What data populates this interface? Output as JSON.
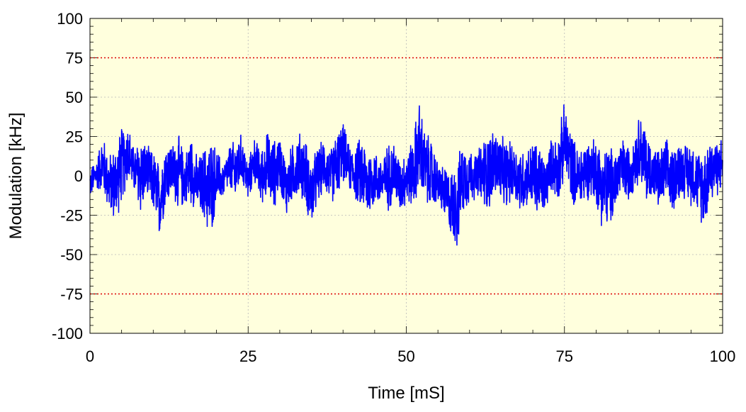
{
  "chart_data": {
    "type": "line",
    "xlabel": "Time [mS]",
    "ylabel": "Modulation [kHz]",
    "xlim": [
      0,
      100
    ],
    "ylim": [
      -100,
      100
    ],
    "x_ticks": [
      0,
      25,
      50,
      75,
      100
    ],
    "x_tick_labels": [
      "0",
      "25",
      "50",
      "75",
      "100"
    ],
    "y_ticks": [
      100,
      75,
      50,
      25,
      0,
      -25,
      -50,
      -75,
      -100
    ],
    "y_tick_labels": [
      "100",
      "75",
      "50",
      "25",
      "0",
      "-25",
      "-50",
      "-75",
      "-100"
    ],
    "grid": true,
    "plot_background": "#ffffdd",
    "series": [
      {
        "color": "#0000ff",
        "envelope_x": [
          0,
          1,
          2,
          3,
          4,
          5,
          6,
          7,
          8,
          9,
          10,
          11,
          12,
          13,
          14,
          15,
          16,
          17,
          18,
          19,
          20,
          21,
          22,
          23,
          24,
          25,
          26,
          27,
          28,
          29,
          30,
          31,
          32,
          33,
          34,
          35,
          36,
          37,
          38,
          39,
          40,
          41,
          42,
          43,
          44,
          45,
          46,
          47,
          48,
          49,
          50,
          51,
          52,
          53,
          54,
          55,
          56,
          57,
          58,
          59,
          60,
          61,
          62,
          63,
          64,
          65,
          66,
          67,
          68,
          69,
          70,
          71,
          72,
          73,
          74,
          75,
          76,
          77,
          78,
          79,
          80,
          81,
          82,
          83,
          84,
          85,
          86,
          87,
          88,
          89,
          90,
          91,
          92,
          93,
          94,
          95,
          96,
          97,
          98,
          99,
          100
        ],
        "max": [
          5,
          12,
          28,
          15,
          22,
          33,
          36,
          18,
          30,
          20,
          18,
          10,
          25,
          22,
          28,
          15,
          30,
          12,
          20,
          28,
          20,
          8,
          20,
          25,
          28,
          10,
          26,
          18,
          30,
          25,
          28,
          12,
          22,
          30,
          26,
          12,
          20,
          25,
          18,
          30,
          36,
          20,
          22,
          28,
          20,
          18,
          12,
          22,
          25,
          12,
          18,
          25,
          52,
          30,
          25,
          10,
          8,
          5,
          12,
          25,
          20,
          15,
          25,
          30,
          33,
          26,
          25,
          22,
          20,
          18,
          25,
          22,
          12,
          26,
          28,
          49,
          32,
          20,
          24,
          25,
          28,
          20,
          22,
          18,
          26,
          22,
          28,
          43,
          30,
          20,
          18,
          25,
          20,
          26,
          22,
          25,
          18,
          20,
          29,
          25,
          26
        ],
        "min": [
          -15,
          -10,
          -12,
          -25,
          -32,
          -20,
          -5,
          -12,
          -28,
          -15,
          -25,
          -42,
          -20,
          -15,
          -25,
          -20,
          -20,
          -25,
          -30,
          -45,
          -20,
          -15,
          -10,
          -20,
          -5,
          -18,
          -5,
          -20,
          -15,
          -25,
          -10,
          -28,
          -18,
          -15,
          -20,
          -36,
          -20,
          -10,
          -20,
          -15,
          -5,
          -10,
          -18,
          -25,
          -30,
          -20,
          -20,
          -25,
          -18,
          -25,
          -20,
          -22,
          -15,
          -20,
          -25,
          -18,
          -30,
          -40,
          -50,
          -25,
          -20,
          -15,
          -20,
          -25,
          -15,
          -20,
          -22,
          -15,
          -28,
          -20,
          -25,
          -30,
          -25,
          -10,
          -20,
          -5,
          -15,
          -25,
          -20,
          -15,
          -20,
          -35,
          -37,
          -25,
          -15,
          -20,
          -10,
          -5,
          -20,
          -15,
          -25,
          -20,
          -25,
          -18,
          -15,
          -20,
          -25,
          -35,
          -20,
          -15,
          -10
        ]
      }
    ],
    "reference_lines": [
      {
        "y": 75,
        "color": "#dd0000",
        "style": "dotted"
      },
      {
        "y": -75,
        "color": "#dd0000",
        "style": "dotted"
      }
    ]
  }
}
